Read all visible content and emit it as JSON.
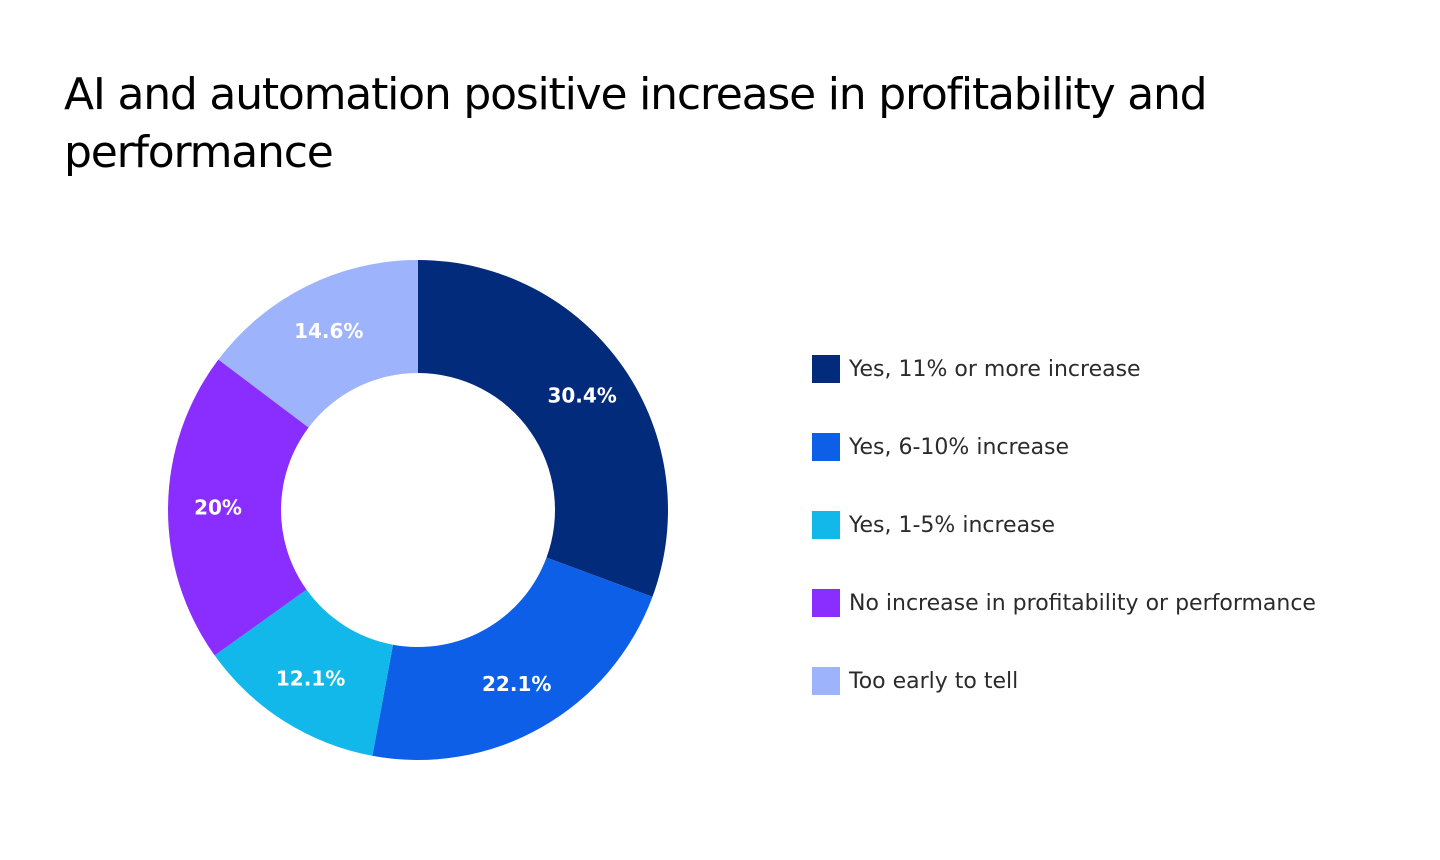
{
  "chart_data": {
    "type": "pie",
    "variant": "donut",
    "title": "AI and automation positive increase in profitability and performance",
    "unit": "%",
    "categories": [
      "Yes, 11% or more increase",
      "Yes, 6-10% increase",
      "Yes, 1-5% increase",
      "No increase in profitability or performance",
      "Too early to tell"
    ],
    "values": [
      30.4,
      22.1,
      12.1,
      20,
      14.6
    ],
    "data_labels": [
      "30.4%",
      "22.1%",
      "12.1%",
      "20%",
      "14.6%"
    ],
    "colors": [
      "#032b7c",
      "#0d5fe8",
      "#12b8ea",
      "#8a2eff",
      "#9db3fb"
    ],
    "legend_position": "right",
    "start_angle": "12 o'clock",
    "direction": "clockwise"
  }
}
